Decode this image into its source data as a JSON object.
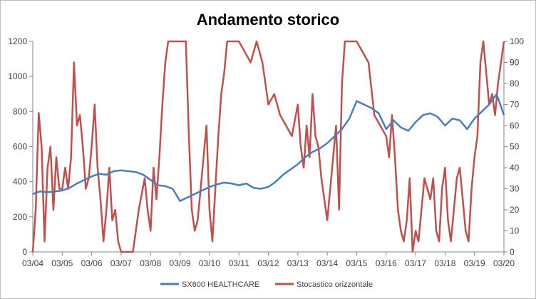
{
  "chart_data": {
    "type": "line",
    "title": "Andamento storico",
    "xlabel": "",
    "ylabel": "",
    "x_ticks": [
      "03/04",
      "03/05",
      "03/06",
      "03/07",
      "03/08",
      "03/09",
      "03/10",
      "03/11",
      "03/12",
      "03/13",
      "03/14",
      "03/15",
      "03/16",
      "03/17",
      "03/18",
      "03/19",
      "03/20"
    ],
    "ylim_left": [
      0,
      1200
    ],
    "ylim_right": [
      0,
      100
    ],
    "y_ticks_left": [
      0,
      200,
      400,
      600,
      800,
      1000,
      1200
    ],
    "y_ticks_right": [
      0,
      10,
      20,
      30,
      40,
      50,
      60,
      70,
      80,
      90,
      100
    ],
    "grid": false,
    "legend_position": "bottom",
    "series": [
      {
        "name": "SX600 HEALTHCARE",
        "axis": "left",
        "color": "#4a7ebb",
        "x": [
          2004.0,
          2004.25,
          2004.5,
          2004.75,
          2005.0,
          2005.25,
          2005.5,
          2005.75,
          2006.0,
          2006.25,
          2006.5,
          2006.75,
          2007.0,
          2007.25,
          2007.5,
          2007.75,
          2008.0,
          2008.25,
          2008.5,
          2008.75,
          2009.0,
          2009.25,
          2009.5,
          2009.75,
          2010.0,
          2010.25,
          2010.5,
          2010.75,
          2011.0,
          2011.25,
          2011.5,
          2011.75,
          2012.0,
          2012.25,
          2012.5,
          2012.75,
          2013.0,
          2013.25,
          2013.5,
          2013.75,
          2014.0,
          2014.25,
          2014.5,
          2014.75,
          2015.0,
          2015.25,
          2015.5,
          2015.75,
          2016.0,
          2016.25,
          2016.5,
          2016.75,
          2017.0,
          2017.25,
          2017.5,
          2017.75,
          2018.0,
          2018.25,
          2018.5,
          2018.75,
          2019.0,
          2019.25,
          2019.5,
          2019.75,
          2020.0
        ],
        "values": [
          330,
          345,
          340,
          345,
          350,
          365,
          390,
          410,
          430,
          445,
          440,
          460,
          465,
          460,
          455,
          440,
          410,
          380,
          375,
          360,
          290,
          310,
          330,
          350,
          370,
          385,
          395,
          390,
          380,
          390,
          365,
          360,
          370,
          400,
          440,
          470,
          500,
          540,
          570,
          590,
          620,
          660,
          700,
          760,
          860,
          840,
          820,
          790,
          700,
          750,
          710,
          690,
          740,
          780,
          790,
          770,
          720,
          760,
          750,
          700,
          760,
          800,
          840,
          900,
          780
        ]
      },
      {
        "name": "Stocastico orizzontale",
        "axis": "right",
        "color": "#c0504d",
        "x": [
          2004.0,
          2004.1,
          2004.2,
          2004.3,
          2004.4,
          2004.5,
          2004.6,
          2004.7,
          2004.8,
          2004.9,
          2005.0,
          2005.1,
          2005.2,
          2005.3,
          2005.4,
          2005.5,
          2005.6,
          2005.7,
          2005.8,
          2005.9,
          2006.0,
          2006.1,
          2006.2,
          2006.3,
          2006.4,
          2006.5,
          2006.6,
          2006.7,
          2006.8,
          2006.9,
          2007.0,
          2007.2,
          2007.4,
          2007.6,
          2007.8,
          2007.9,
          2008.0,
          2008.1,
          2008.2,
          2008.3,
          2008.4,
          2008.5,
          2008.6,
          2008.7,
          2008.8,
          2009.0,
          2009.2,
          2009.3,
          2009.4,
          2009.5,
          2009.6,
          2009.7,
          2009.8,
          2009.9,
          2010.0,
          2010.1,
          2010.2,
          2010.3,
          2010.4,
          2010.5,
          2010.6,
          2010.7,
          2010.8,
          2010.9,
          2011.0,
          2011.2,
          2011.4,
          2011.6,
          2011.8,
          2012.0,
          2012.2,
          2012.4,
          2012.6,
          2012.8,
          2013.0,
          2013.1,
          2013.2,
          2013.3,
          2013.4,
          2013.5,
          2013.6,
          2013.7,
          2013.8,
          2013.9,
          2014.0,
          2014.1,
          2014.2,
          2014.3,
          2014.4,
          2014.5,
          2014.6,
          2014.7,
          2014.8,
          2014.9,
          2015.0,
          2015.2,
          2015.4,
          2015.6,
          2015.8,
          2016.0,
          2016.1,
          2016.2,
          2016.3,
          2016.4,
          2016.5,
          2016.6,
          2016.7,
          2016.8,
          2016.9,
          2017.0,
          2017.1,
          2017.2,
          2017.3,
          2017.4,
          2017.5,
          2017.6,
          2017.7,
          2017.8,
          2017.9,
          2018.0,
          2018.1,
          2018.2,
          2018.3,
          2018.4,
          2018.5,
          2018.6,
          2018.7,
          2018.8,
          2018.9,
          2019.0,
          2019.1,
          2019.2,
          2019.3,
          2019.4,
          2019.5,
          2019.6,
          2019.7,
          2019.8,
          2019.9,
          2020.0
        ],
        "values": [
          0,
          20,
          66,
          50,
          5,
          40,
          50,
          20,
          45,
          30,
          30,
          40,
          30,
          45,
          90,
          60,
          65,
          50,
          30,
          35,
          50,
          70,
          40,
          25,
          5,
          20,
          40,
          15,
          20,
          5,
          0,
          0,
          0,
          20,
          35,
          20,
          10,
          40,
          25,
          45,
          70,
          90,
          100,
          100,
          100,
          100,
          100,
          55,
          20,
          10,
          15,
          30,
          45,
          60,
          20,
          5,
          30,
          55,
          75,
          85,
          100,
          100,
          100,
          100,
          100,
          95,
          90,
          100,
          90,
          70,
          75,
          65,
          60,
          55,
          70,
          50,
          40,
          60,
          45,
          75,
          55,
          50,
          35,
          25,
          15,
          30,
          45,
          60,
          20,
          80,
          100,
          100,
          100,
          100,
          100,
          95,
          90,
          65,
          60,
          55,
          45,
          65,
          45,
          20,
          10,
          5,
          15,
          35,
          0,
          10,
          5,
          20,
          35,
          30,
          25,
          35,
          10,
          5,
          30,
          40,
          15,
          5,
          20,
          35,
          40,
          25,
          10,
          5,
          30,
          45,
          55,
          90,
          100,
          85,
          70,
          75,
          65,
          80,
          90,
          100
        ]
      }
    ]
  }
}
